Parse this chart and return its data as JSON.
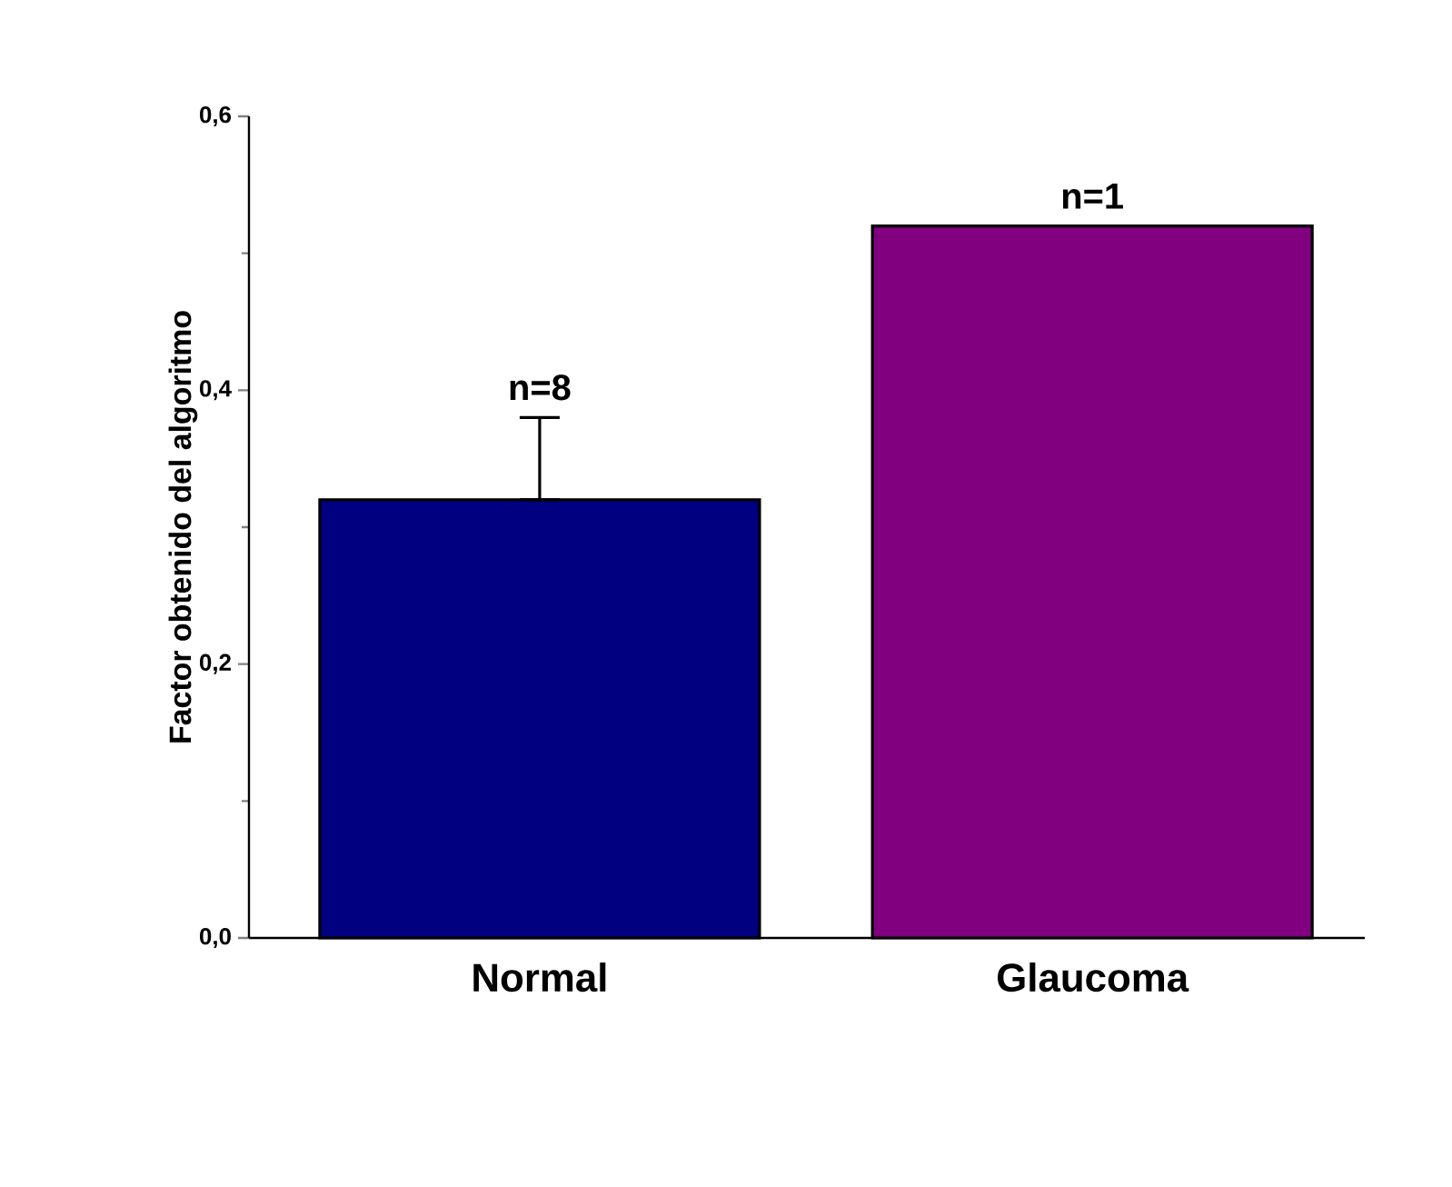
{
  "chart_data": {
    "type": "bar",
    "ylabel": "Factor obtenido del algoritmo",
    "categories": [
      "Normal",
      "Glaucoma"
    ],
    "values": [
      0.32,
      0.52
    ],
    "colors": [
      "#000080",
      "#800080"
    ],
    "errors": [
      [
        0.32,
        0.38
      ],
      null
    ],
    "ylim": [
      0,
      0.6
    ],
    "yticks": [
      {
        "value": 0,
        "label": "0,0"
      },
      {
        "value": 0.1,
        "label": null
      },
      {
        "value": 0.2,
        "label": "0,2"
      },
      {
        "value": 0.3,
        "label": null
      },
      {
        "value": 0.4,
        "label": "0,4"
      },
      {
        "value": 0.5,
        "label": null
      },
      {
        "value": 0.6,
        "label": "0,6"
      }
    ],
    "annotations": [
      {
        "text": "n=8",
        "x": "Normal",
        "y": 0.38
      },
      {
        "text": "n=1",
        "x": "Glaucoma",
        "y": 0.52
      }
    ]
  }
}
